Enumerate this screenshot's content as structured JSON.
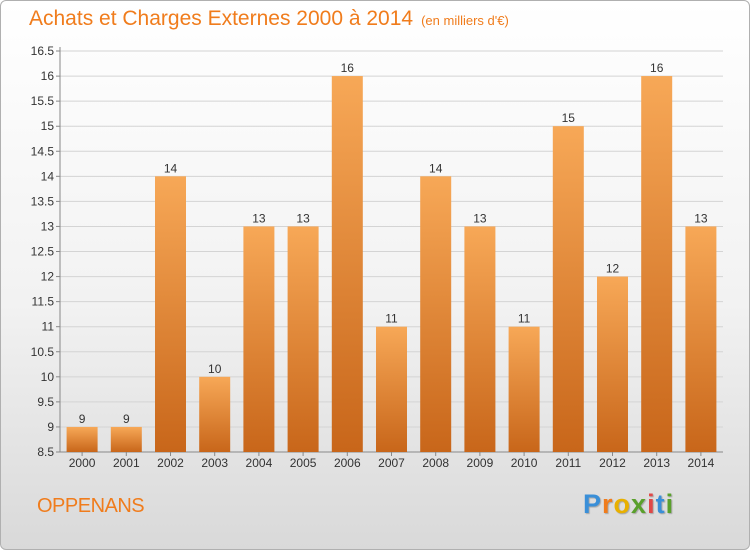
{
  "header": {
    "title": "Achats et Charges Externes 2000 à 2014",
    "subtitle": "(en milliers d'€)"
  },
  "commune": "OPPENANS",
  "logo": {
    "text": "Proxiti",
    "letter_colors": [
      "#3a8fd8",
      "#f07c1c",
      "#e8b000",
      "#5aa02c",
      "#e04848",
      "#3a8fd8",
      "#5aa02c"
    ]
  },
  "colors": {
    "bar_top": "#f7a857",
    "bar_bottom": "#c8661a",
    "accent": "#f07c1c",
    "grid": "#d4d4d4"
  },
  "chart_data": {
    "type": "bar",
    "categories": [
      "2000",
      "2001",
      "2002",
      "2003",
      "2004",
      "2005",
      "2006",
      "2007",
      "2008",
      "2009",
      "2010",
      "2011",
      "2012",
      "2013",
      "2014"
    ],
    "values": [
      9,
      9,
      14,
      10,
      13,
      13,
      16,
      11,
      14,
      13,
      11,
      15,
      12,
      16,
      13
    ],
    "data_labels": [
      "9",
      "9",
      "14",
      "10",
      "13",
      "13",
      "16",
      "11",
      "14",
      "13",
      "11",
      "15",
      "12",
      "16",
      "13"
    ],
    "y_ticks": [
      "8.5",
      "9",
      "9.5",
      "10",
      "10.5",
      "11",
      "11.5",
      "12",
      "12.5",
      "13",
      "13.5",
      "14",
      "14.5",
      "15",
      "15.5",
      "16",
      "16.5"
    ],
    "title": "Achats et Charges Externes 2000 à 2014",
    "xlabel": "",
    "ylabel": "",
    "ylim": [
      8.5,
      16.5
    ],
    "grid": true
  }
}
